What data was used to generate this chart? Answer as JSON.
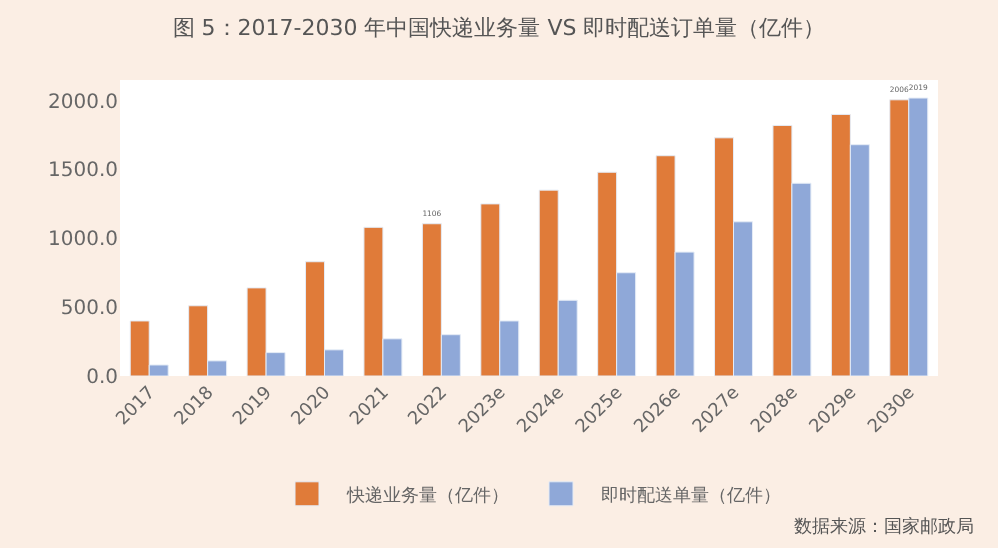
{
  "chart_data": {
    "type": "bar",
    "title": "图 5：2017-2030 年中国快递业务量 VS 即时配送订单量（亿件）",
    "categories": [
      "2017",
      "2018",
      "2019",
      "2020",
      "2021",
      "2022",
      "2023e",
      "2024e",
      "2025e",
      "2026e",
      "2027e",
      "2028e",
      "2029e",
      "2030e"
    ],
    "series": [
      {
        "name": "快递业务量（亿件）",
        "color": "#e07b39",
        "values": [
          400,
          510,
          640,
          830,
          1080,
          1106,
          1250,
          1350,
          1480,
          1600,
          1730,
          1820,
          1900,
          2006
        ],
        "value_labels": [
          null,
          null,
          null,
          null,
          null,
          "1106",
          null,
          null,
          null,
          null,
          null,
          null,
          null,
          "2006"
        ]
      },
      {
        "name": "即时配送单量（亿件）",
        "color": "#8fa8d8",
        "values": [
          80,
          110,
          170,
          190,
          270,
          300,
          400,
          550,
          750,
          900,
          1120,
          1400,
          1680,
          2019
        ],
        "value_labels": [
          null,
          null,
          null,
          null,
          null,
          null,
          null,
          null,
          null,
          null,
          null,
          null,
          null,
          "2019"
        ]
      }
    ],
    "ylim": [
      0,
      2150
    ],
    "yticks": [
      {
        "value": 0,
        "label": "0.0"
      },
      {
        "value": 500,
        "label": "500.0"
      },
      {
        "value": 1000,
        "label": "1000.0"
      },
      {
        "value": 1500,
        "label": "1500.0"
      },
      {
        "value": 2000,
        "label": "2000.0"
      }
    ],
    "legend": "bottom",
    "annotations": [
      "数据来源：国家邮政局"
    ]
  }
}
